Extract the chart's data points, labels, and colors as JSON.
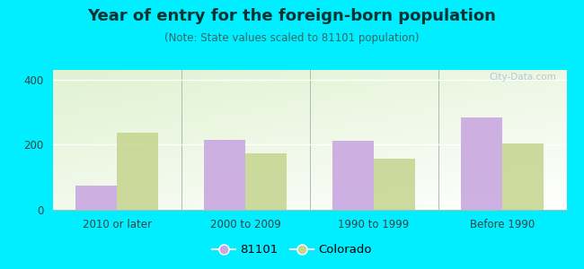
{
  "title": "Year of entry for the foreign-born population",
  "subtitle": "(Note: State values scaled to 81101 population)",
  "categories": [
    "2010 or later",
    "2000 to 2009",
    "1990 to 1999",
    "Before 1990"
  ],
  "values_81101": [
    75,
    215,
    213,
    285
  ],
  "values_colorado": [
    238,
    175,
    158,
    203
  ],
  "bar_color_81101": "#c9a8e0",
  "bar_color_colorado": "#c5d48e",
  "background_outer": "#00eeff",
  "background_inner": "#e8f0d8",
  "ylim": [
    0,
    430
  ],
  "yticks": [
    0,
    200,
    400
  ],
  "bar_width": 0.32,
  "legend_label_81101": "81101",
  "legend_label_colorado": "Colorado",
  "title_fontsize": 13,
  "subtitle_fontsize": 8.5,
  "tick_fontsize": 8.5,
  "title_color": "#003333",
  "subtitle_color": "#336666"
}
